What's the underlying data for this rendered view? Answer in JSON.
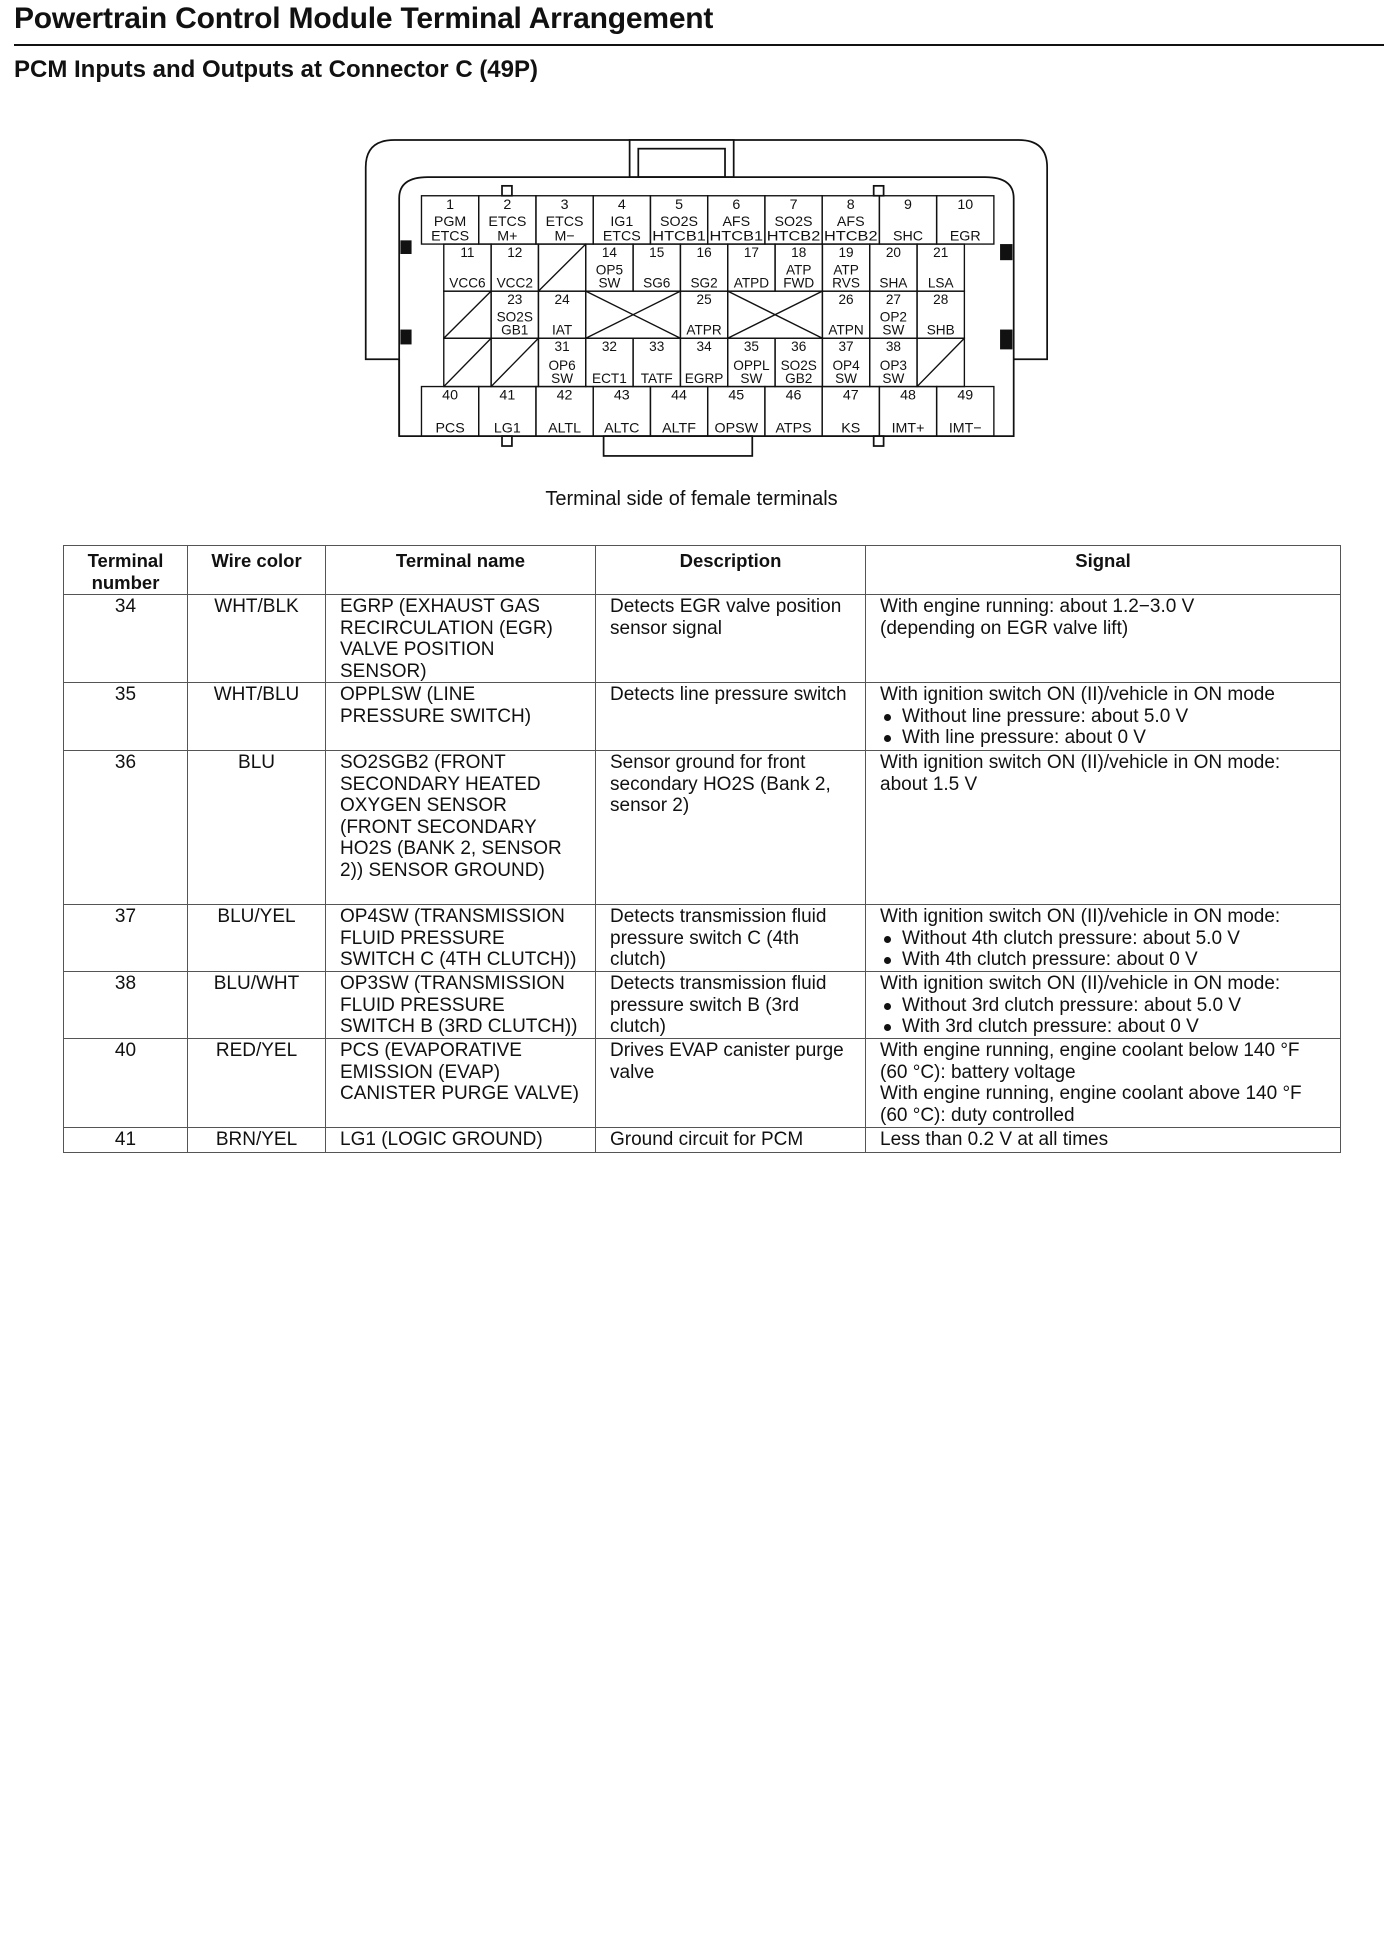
{
  "title": "Powertrain Control Module Terminal Arrangement",
  "subtitle": "PCM Inputs and Outputs at Connector C (49P)",
  "connector": {
    "caption": "Terminal side of female terminals",
    "terminals": {
      "1": [
        "PGM",
        "ETCS"
      ],
      "2": [
        "ETCS",
        "M+"
      ],
      "3": [
        "ETCS",
        "M−"
      ],
      "4": [
        "IG1",
        "ETCS"
      ],
      "5": [
        "SO2S",
        "HTCB1"
      ],
      "6": [
        "AFS",
        "HTCB1"
      ],
      "7": [
        "SO2S",
        "HTCB2"
      ],
      "8": [
        "AFS",
        "HTCB2"
      ],
      "9": [
        "SHC"
      ],
      "10": [
        "EGR"
      ],
      "11": [
        "VCC6"
      ],
      "12": [
        "VCC2"
      ],
      "14": [
        "OP5",
        "SW"
      ],
      "15": [
        "SG6"
      ],
      "16": [
        "SG2"
      ],
      "17": [
        "ATPD"
      ],
      "18": [
        "ATP",
        "FWD"
      ],
      "19": [
        "ATP",
        "RVS"
      ],
      "20": [
        "SHA"
      ],
      "21": [
        "LSA"
      ],
      "23": [
        "SO2S",
        "GB1"
      ],
      "24": [
        "IAT"
      ],
      "25": [
        "ATPR"
      ],
      "26": [
        "ATPN"
      ],
      "27": [
        "OP2",
        "SW"
      ],
      "28": [
        "SHB"
      ],
      "31": [
        "OP6",
        "SW"
      ],
      "32": [
        "ECT1"
      ],
      "33": [
        "TATF"
      ],
      "34": [
        "EGRP"
      ],
      "35": [
        "OPPL",
        "SW"
      ],
      "36": [
        "SO2S",
        "GB2"
      ],
      "37": [
        "OP4",
        "SW"
      ],
      "38": [
        "OP3",
        "SW"
      ],
      "40": [
        "PCS"
      ],
      "41": [
        "LG1"
      ],
      "42": [
        "ALTL"
      ],
      "43": [
        "ALTC"
      ],
      "44": [
        "ALTF"
      ],
      "45": [
        "OPSW"
      ],
      "46": [
        "ATPS"
      ],
      "47": [
        "KS"
      ],
      "48": [
        "IMT+"
      ],
      "49": [
        "IMT−"
      ]
    }
  },
  "table": {
    "headers": [
      "Terminal number",
      "Wire color",
      "Terminal name",
      "Description",
      "Signal"
    ],
    "rows": [
      {
        "number": "34",
        "wire": "WHT/BLK",
        "name": "EGRP (EXHAUST GAS RECIRCULATION (EGR) VALVE POSITION SENSOR)",
        "description": "Detects EGR valve position sensor signal",
        "signal": [
          "With engine running: about 1.2−3.0 V",
          "(depending on EGR valve lift)"
        ],
        "bullets": []
      },
      {
        "number": "35",
        "wire": "WHT/BLU",
        "name": "OPPLSW (LINE PRESSURE SWITCH)",
        "description": "Detects line pressure switch",
        "signal": [
          "With ignition switch ON (II)/vehicle in ON mode"
        ],
        "bullets": [
          "Without line pressure: about 5.0 V",
          "With line pressure: about 0 V"
        ]
      },
      {
        "number": "36",
        "wire": "BLU",
        "name": "SO2SGB2 (FRONT SECONDARY HEATED OXYGEN SENSOR (FRONT SECONDARY HO2S (BANK 2, SENSOR 2)) SENSOR GROUND)",
        "description": "Sensor ground for front secondary HO2S (Bank 2, sensor 2)",
        "signal": [
          "With ignition switch ON (II)/vehicle in ON mode:",
          "about 1.5 V"
        ],
        "bullets": []
      },
      {
        "number": "37",
        "wire": "BLU/YEL",
        "name": "OP4SW (TRANSMISSION FLUID PRESSURE SWITCH C (4TH CLUTCH))",
        "description": "Detects transmission fluid pressure switch C (4th clutch)",
        "signal": [
          "With ignition switch ON (II)/vehicle in ON mode:"
        ],
        "bullets": [
          "Without 4th clutch pressure: about 5.0 V",
          "With 4th clutch pressure: about 0 V"
        ]
      },
      {
        "number": "38",
        "wire": "BLU/WHT",
        "name": "OP3SW (TRANSMISSION FLUID PRESSURE SWITCH B (3RD CLUTCH))",
        "description": "Detects transmission fluid pressure switch B (3rd clutch)",
        "signal": [
          "With ignition switch ON (II)/vehicle in ON mode:"
        ],
        "bullets": [
          "Without 3rd clutch pressure: about 5.0 V",
          "With 3rd clutch pressure: about 0 V"
        ]
      },
      {
        "number": "40",
        "wire": "RED/YEL",
        "name": "PCS (EVAPORATIVE EMISSION (EVAP) CANISTER PURGE VALVE)",
        "description": "Drives EVAP canister purge valve",
        "signal": [
          "With engine running, engine coolant below 140 °F (60 °C): battery voltage",
          "With engine running, engine coolant above 140 °F (60 °C): duty controlled"
        ],
        "bullets": []
      },
      {
        "number": "41",
        "wire": "BRN/YEL",
        "name": "LG1 (LOGIC GROUND)",
        "description": "Ground circuit for PCM",
        "signal": [
          "Less than 0.2 V at all times"
        ],
        "bullets": []
      }
    ]
  }
}
